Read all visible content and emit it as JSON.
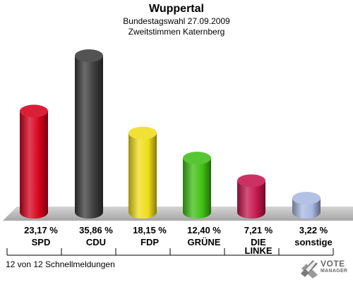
{
  "header": {
    "title": "Wuppertal",
    "subtitle1": "Bundestagswahl 27.09.2009",
    "subtitle2": "Zweitstimmen Katernberg"
  },
  "footer": {
    "text": "12 von 12 Schnellmeldungen"
  },
  "logo": {
    "line1": "VOTE",
    "line2": "MANAGER",
    "icon": "checkmark-x-icon"
  },
  "chart_data": {
    "type": "bar",
    "title": "Wuppertal",
    "subtitle": "Bundestagswahl 27.09.2009 Zweitstimmen Katernberg",
    "xlabel": "",
    "ylabel": "",
    "ylim": [
      0,
      40
    ],
    "grid": false,
    "categories": [
      "SPD",
      "CDU",
      "FDP",
      "GRÜNE",
      "DIE LINKE",
      "sonstige"
    ],
    "category_lines": [
      [
        "SPD"
      ],
      [
        "CDU"
      ],
      [
        "FDP"
      ],
      [
        "GRÜNE"
      ],
      [
        "DIE",
        "LINKE"
      ],
      [
        "sonstige"
      ]
    ],
    "values": [
      23.17,
      35.86,
      18.15,
      12.4,
      7.21,
      3.22
    ],
    "value_labels": [
      "23,17 %",
      "35,86 %",
      "18,15 %",
      "12,40 %",
      "7,21 %",
      "3,22 %"
    ],
    "colors": [
      "#d6001c",
      "#3b3b3b",
      "#f0dd1a",
      "#3fbf14",
      "#c4164e",
      "#a9b8e2"
    ]
  }
}
